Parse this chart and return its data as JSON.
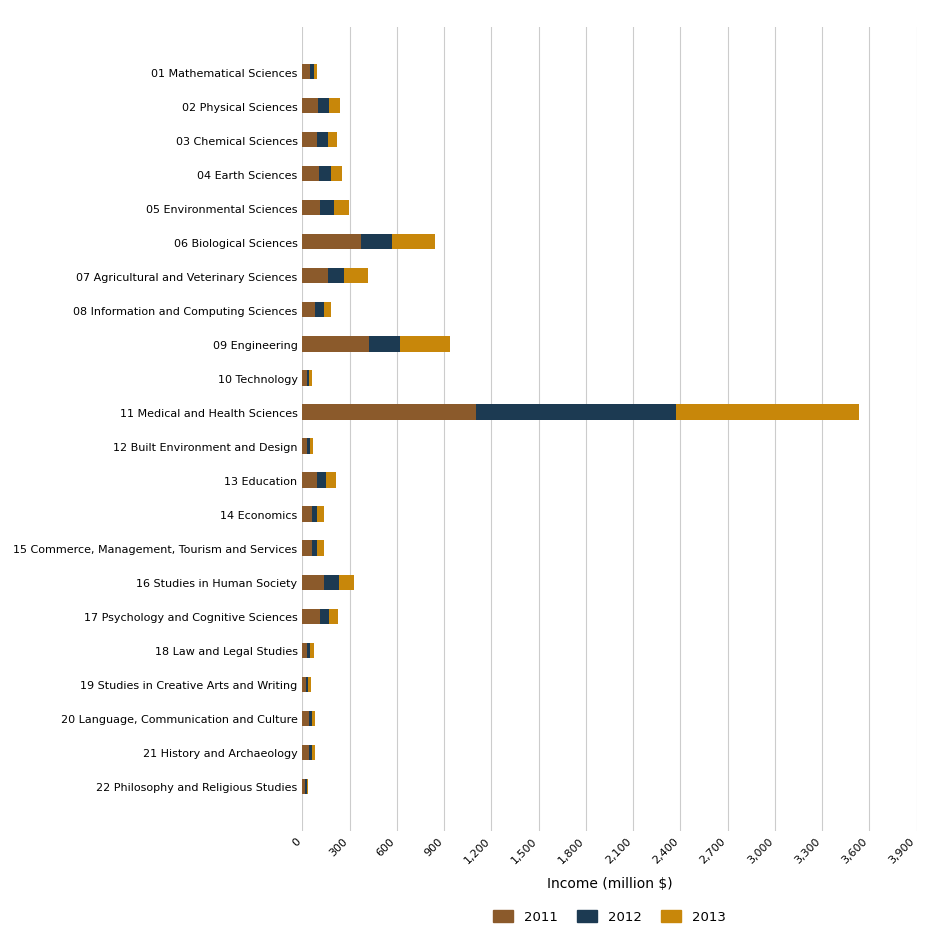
{
  "categories": [
    "01 Mathematical Sciences",
    "02 Physical Sciences",
    "03 Chemical Sciences",
    "04 Earth Sciences",
    "05 Environmental Sciences",
    "06 Biological Sciences",
    "07 Agricultural and Veterinary Sciences",
    "08 Information and Computing Sciences",
    "09 Engineering",
    "10 Technology",
    "11 Medical and Health Sciences",
    "12 Built Environment and Design",
    "13 Education",
    "14 Economics",
    "15 Commerce, Management, Tourism and Services",
    "16 Studies in Human Society",
    "17 Psychology and Cognitive Sciences",
    "18 Law and Legal Studies",
    "19 Studies in Creative Arts and Writing",
    "20 Language, Communication and Culture",
    "21 History and Archaeology",
    "22 Philosophy and Religious Studies"
  ],
  "values_2011": [
    50,
    100,
    95,
    105,
    110,
    370,
    165,
    80,
    420,
    28,
    1100,
    28,
    95,
    60,
    60,
    140,
    110,
    32,
    22,
    42,
    42,
    18
  ],
  "values_2012": [
    22,
    70,
    70,
    75,
    90,
    200,
    100,
    55,
    200,
    13,
    1270,
    18,
    55,
    35,
    35,
    90,
    60,
    18,
    13,
    18,
    18,
    9
  ],
  "values_2013": [
    18,
    70,
    55,
    70,
    95,
    270,
    150,
    45,
    320,
    18,
    1165,
    22,
    65,
    42,
    42,
    100,
    55,
    22,
    18,
    22,
    22,
    9
  ],
  "color_2011": "#8B5A2B",
  "color_2012": "#1C3A52",
  "color_2013": "#C8870A",
  "xlabel": "Income (million $)",
  "xlim": [
    0,
    3900
  ],
  "xticks": [
    0,
    300,
    600,
    900,
    1200,
    1500,
    1800,
    2100,
    2400,
    2700,
    3000,
    3300,
    3600,
    3900
  ],
  "figsize": [
    9.45,
    9.45
  ],
  "dpi": 100,
  "bar_height": 0.45,
  "background_color": "#ffffff",
  "grid_color": "#cccccc"
}
